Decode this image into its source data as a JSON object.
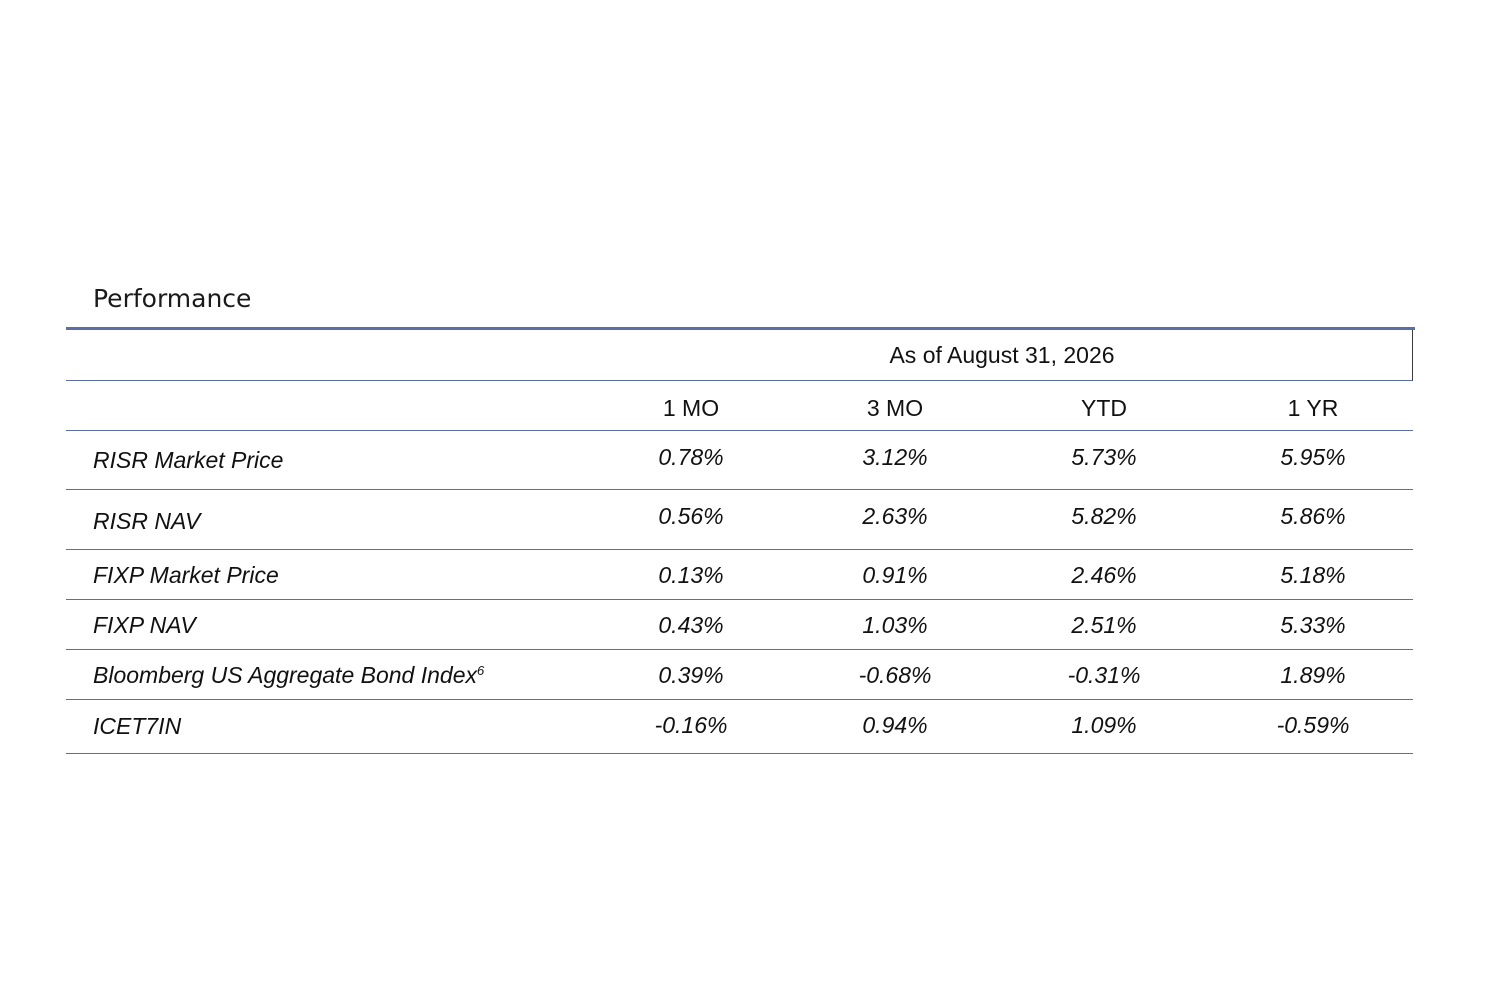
{
  "title": "Performance",
  "as_of": "As of August 31, 2026",
  "columns": [
    "1 MO",
    "3 MO",
    "YTD",
    "1 YR"
  ],
  "rows": [
    {
      "name": "RISR Market Price",
      "sup": "",
      "values": [
        "0.78%",
        "3.12%",
        "5.73%",
        "5.95%"
      ]
    },
    {
      "name": "RISR NAV",
      "sup": "",
      "values": [
        "0.56%",
        "2.63%",
        "5.82%",
        "5.86%"
      ]
    },
    {
      "name": "FIXP Market Price",
      "sup": "",
      "values": [
        "0.13%",
        "0.91%",
        "2.46%",
        "5.18%"
      ]
    },
    {
      "name": "FIXP NAV",
      "sup": "",
      "values": [
        "0.43%",
        "1.03%",
        "2.51%",
        "5.33%"
      ]
    },
    {
      "name": "Bloomberg US Aggregate Bond Index",
      "sup": "6",
      "values": [
        "0.39%",
        "-0.68%",
        "-0.31%",
        "1.89%"
      ]
    },
    {
      "name": "ICET7IN",
      "sup": "",
      "values": [
        "-0.16%",
        "0.94%",
        "1.09%",
        "-0.59%"
      ]
    }
  ]
}
